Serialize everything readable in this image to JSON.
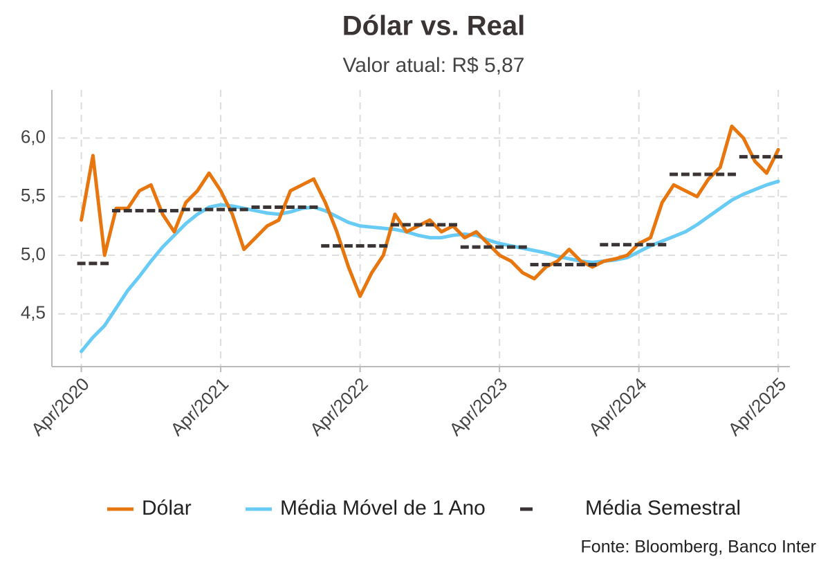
{
  "chart_data": {
    "type": "line",
    "title": "Dólar vs. Real",
    "subtitle": "Valor atual: R$ 5,87",
    "caption": "Fonte: Bloomberg, Banco Inter",
    "x": [
      "2020-04",
      "2020-05",
      "2020-06",
      "2020-07",
      "2020-08",
      "2020-09",
      "2020-10",
      "2020-11",
      "2020-12",
      "2021-01",
      "2021-02",
      "2021-03",
      "2021-04",
      "2021-05",
      "2021-06",
      "2021-07",
      "2021-08",
      "2021-09",
      "2021-10",
      "2021-11",
      "2021-12",
      "2022-01",
      "2022-02",
      "2022-03",
      "2022-04",
      "2022-05",
      "2022-06",
      "2022-07",
      "2022-08",
      "2022-09",
      "2022-10",
      "2022-11",
      "2022-12",
      "2023-01",
      "2023-02",
      "2023-03",
      "2023-04",
      "2023-05",
      "2023-06",
      "2023-07",
      "2023-08",
      "2023-09",
      "2023-10",
      "2023-11",
      "2023-12",
      "2024-01",
      "2024-02",
      "2024-03",
      "2024-04",
      "2024-05",
      "2024-06",
      "2024-07",
      "2024-08",
      "2024-09",
      "2024-10",
      "2024-11",
      "2024-12",
      "2025-01",
      "2025-02",
      "2025-03",
      "2025-04"
    ],
    "series": [
      {
        "name": "Dólar",
        "color": "#e8760e",
        "style": "line",
        "values": [
          5.3,
          5.85,
          5.0,
          5.4,
          5.4,
          5.55,
          5.6,
          5.35,
          5.2,
          5.45,
          5.55,
          5.7,
          5.55,
          5.35,
          5.05,
          5.15,
          5.25,
          5.3,
          5.55,
          5.6,
          5.65,
          5.45,
          5.2,
          4.9,
          4.65,
          4.85,
          5.0,
          5.35,
          5.2,
          5.25,
          5.3,
          5.2,
          5.25,
          5.15,
          5.2,
          5.1,
          5.0,
          4.95,
          4.85,
          4.8,
          4.9,
          4.95,
          5.05,
          4.95,
          4.9,
          4.95,
          4.97,
          5.0,
          5.1,
          5.15,
          5.45,
          5.6,
          5.55,
          5.5,
          5.65,
          5.75,
          6.1,
          6.0,
          5.8,
          5.7,
          5.9
        ]
      },
      {
        "name": "Média Móvel de 1 Ano",
        "color": "#67cbf5",
        "style": "line",
        "values": [
          4.18,
          4.3,
          4.4,
          4.55,
          4.7,
          4.82,
          4.95,
          5.07,
          5.17,
          5.27,
          5.35,
          5.41,
          5.43,
          5.42,
          5.4,
          5.38,
          5.36,
          5.35,
          5.37,
          5.4,
          5.41,
          5.38,
          5.33,
          5.28,
          5.25,
          5.24,
          5.23,
          5.22,
          5.2,
          5.17,
          5.15,
          5.15,
          5.17,
          5.18,
          5.17,
          5.13,
          5.1,
          5.08,
          5.06,
          5.04,
          5.02,
          4.99,
          4.97,
          4.95,
          4.94,
          4.95,
          4.96,
          4.98,
          5.03,
          5.08,
          5.12,
          5.16,
          5.2,
          5.26,
          5.33,
          5.4,
          5.47,
          5.52,
          5.56,
          5.6,
          5.63
        ]
      },
      {
        "name": "Média Semestral",
        "color": "#3a3434",
        "style": "dash",
        "values": [
          4.93,
          4.93,
          4.93,
          5.38,
          5.38,
          5.38,
          5.38,
          5.38,
          5.38,
          5.39,
          5.39,
          5.39,
          5.39,
          5.39,
          5.39,
          5.41,
          5.41,
          5.41,
          5.41,
          5.41,
          5.41,
          5.08,
          5.08,
          5.08,
          5.08,
          5.08,
          5.08,
          5.26,
          5.26,
          5.26,
          5.26,
          5.26,
          5.26,
          5.07,
          5.07,
          5.07,
          5.07,
          5.07,
          5.07,
          4.92,
          4.92,
          4.92,
          4.92,
          4.92,
          4.92,
          5.09,
          5.09,
          5.09,
          5.09,
          5.09,
          5.09,
          5.69,
          5.69,
          5.69,
          5.69,
          5.69,
          5.69,
          5.84,
          5.84,
          5.84,
          5.84
        ]
      }
    ],
    "xlim": [
      "2020-02",
      "2025-05"
    ],
    "xticks": [
      {
        "value": "2020-04",
        "label": "Apr/2020"
      },
      {
        "value": "2021-04",
        "label": "Apr/2021"
      },
      {
        "value": "2022-04",
        "label": "Apr/2022"
      },
      {
        "value": "2023-04",
        "label": "Apr/2023"
      },
      {
        "value": "2024-04",
        "label": "Apr/2024"
      },
      {
        "value": "2025-04",
        "label": "Apr/2025"
      }
    ],
    "ylim": [
      4.05,
      6.41
    ],
    "yticks": [
      {
        "value": 4.5,
        "label": "4,5"
      },
      {
        "value": 5.0,
        "label": "5,0"
      },
      {
        "value": 5.5,
        "label": "5,5"
      },
      {
        "value": 6.0,
        "label": "6,0"
      }
    ],
    "grid": true,
    "legend": "bottom"
  }
}
